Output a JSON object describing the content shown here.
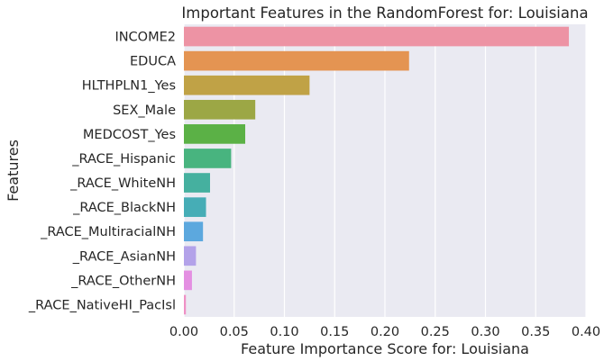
{
  "chart_data": {
    "type": "bar",
    "orientation": "horizontal",
    "title": "Important Features in the RandomForest for: Louisiana",
    "xlabel": "Feature Importance Score for: Louisiana",
    "ylabel": "Features",
    "xlim": [
      0,
      0.4
    ],
    "xticks": [
      "0.00",
      "0.05",
      "0.10",
      "0.15",
      "0.20",
      "0.25",
      "0.30",
      "0.35",
      "0.40"
    ],
    "grid": true,
    "categories": [
      "INCOME2",
      "EDUCA",
      "HLTHPLN1_Yes",
      "SEX_Male",
      "MEDCOST_Yes",
      "_RACE_Hispanic",
      "_RACE_WhiteNH",
      "_RACE_BlackNH",
      "_RACE_MultiracialNH",
      "_RACE_AsianNH",
      "_RACE_OtherNH",
      "_RACE_NativeHI_PacIsl"
    ],
    "values": [
      0.383,
      0.224,
      0.125,
      0.071,
      0.061,
      0.047,
      0.026,
      0.022,
      0.019,
      0.012,
      0.008,
      0.002
    ],
    "colors": [
      "#ed93a4",
      "#e49452",
      "#c0a246",
      "#9ca745",
      "#5bb146",
      "#48b47f",
      "#45b09f",
      "#46adb6",
      "#5ca8de",
      "#b3a2e9",
      "#e48fe2",
      "#ef91c5"
    ]
  }
}
